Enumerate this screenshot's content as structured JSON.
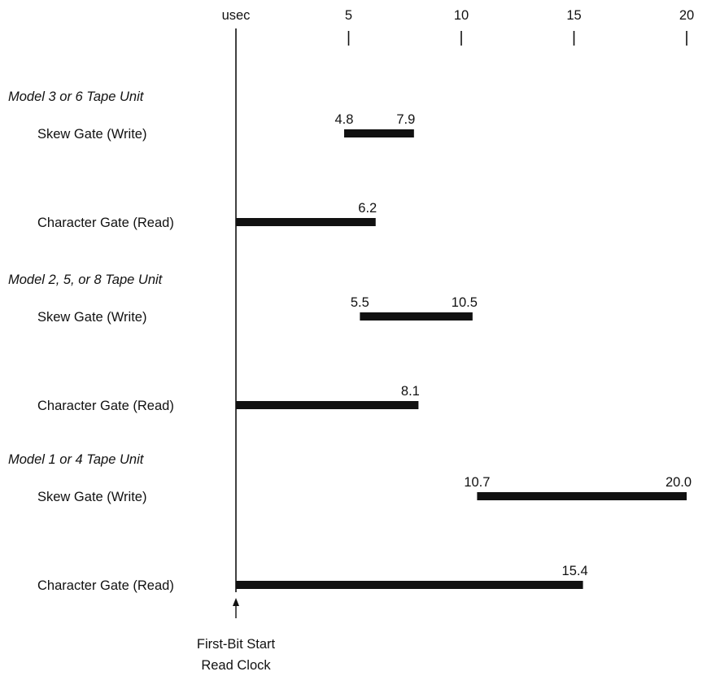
{
  "chart_data": {
    "type": "bar",
    "axis_unit_label": "usec",
    "x_ticks": [
      5,
      10,
      15,
      20
    ],
    "xlim": [
      0,
      20
    ],
    "origin_note": [
      "First-Bit Start",
      "Read Clock"
    ],
    "groups": [
      {
        "name": "Model 3 or 6 Tape Unit",
        "bars": [
          {
            "label": "Skew Gate (Write)",
            "start": 4.8,
            "end": 7.9,
            "start_label": "4.8",
            "end_label": "7.9"
          },
          {
            "label": "Character Gate (Read)",
            "start": 0,
            "end": 6.2,
            "start_label": "",
            "end_label": "6.2"
          }
        ]
      },
      {
        "name": "Model 2, 5, or 8 Tape Unit",
        "bars": [
          {
            "label": "Skew Gate (Write)",
            "start": 5.5,
            "end": 10.5,
            "start_label": "5.5",
            "end_label": "10.5"
          },
          {
            "label": "Character Gate (Read)",
            "start": 0,
            "end": 8.1,
            "start_label": "",
            "end_label": "8.1"
          }
        ]
      },
      {
        "name": "Model 1 or 4 Tape Unit",
        "bars": [
          {
            "label": "Skew Gate (Write)",
            "start": 10.7,
            "end": 20.0,
            "start_label": "10.7",
            "end_label": "20.0"
          },
          {
            "label": "Character Gate (Read)",
            "start": 0,
            "end": 15.4,
            "start_label": "",
            "end_label": "15.4"
          }
        ]
      }
    ]
  }
}
